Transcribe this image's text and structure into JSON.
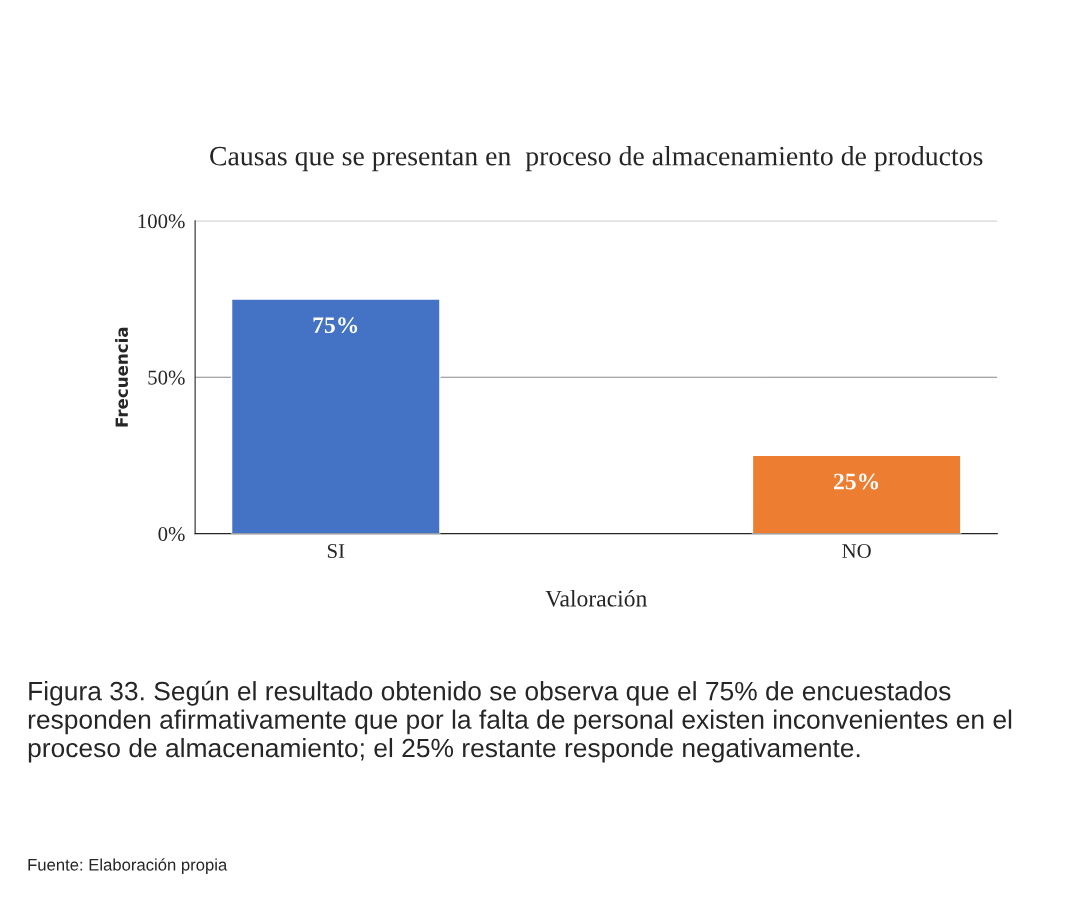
{
  "chart_data": {
    "type": "bar",
    "title": "Causas que se presentan en  proceso de almacenamiento de productos",
    "xlabel": "Valoración",
    "ylabel": "Frecuencia",
    "categories": [
      "SI",
      "NO"
    ],
    "values": [
      75,
      25
    ],
    "colors": [
      "#4472c4",
      "#ed7d31"
    ],
    "value_labels": [
      "75%",
      "25%"
    ],
    "ylim": [
      0,
      100
    ],
    "yticks": [
      {
        "value": 0,
        "label": "0%"
      },
      {
        "value": 50,
        "label": "50%"
      },
      {
        "value": 100,
        "label": "100%"
      }
    ],
    "grid": "y",
    "annotations": [
      "Figura 33. Según el resultado obtenido se observa que el 75% de encuestados responden afirmativamente que por la falta de personal existen inconvenientes en el proceso de almacenamiento; el 25% restante responde negativamente.",
      "Fuente: Elaboración propia"
    ]
  }
}
